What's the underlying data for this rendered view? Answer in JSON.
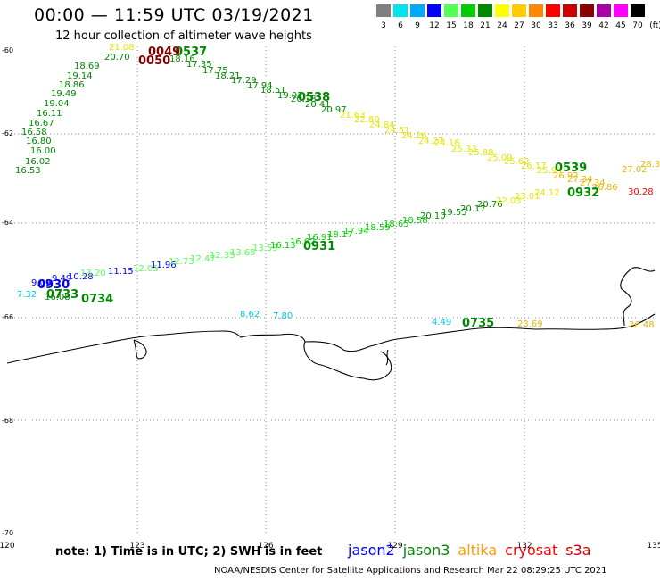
{
  "header": {
    "title": "00:00 — 11:59 UTC 03/19/2021",
    "subtitle": "12 hour collection of altimeter wave heights"
  },
  "colorbar": {
    "unit": "(ft)",
    "levels": [
      {
        "label": "3",
        "color": "#808080"
      },
      {
        "label": "6",
        "color": "#00e5ee"
      },
      {
        "label": "9",
        "color": "#00a8ff"
      },
      {
        "label": "12",
        "color": "#0000ff"
      },
      {
        "label": "15",
        "color": "#55ff55"
      },
      {
        "label": "18",
        "color": "#00cc00"
      },
      {
        "label": "21",
        "color": "#008800"
      },
      {
        "label": "24",
        "color": "#ffff00"
      },
      {
        "label": "27",
        "color": "#ffcc00"
      },
      {
        "label": "30",
        "color": "#ff8800"
      },
      {
        "label": "33",
        "color": "#ff0000"
      },
      {
        "label": "36",
        "color": "#cc0000"
      },
      {
        "label": "39",
        "color": "#880000"
      },
      {
        "label": "42",
        "color": "#aa00aa"
      },
      {
        "label": "45",
        "color": "#ff00ff"
      },
      {
        "label": "70",
        "color": "#000000"
      }
    ]
  },
  "map": {
    "lon_ticks": [
      "120",
      "123",
      "126",
      "129",
      "132",
      "135"
    ],
    "lat_ticks": [
      "-60",
      "-62",
      "-64",
      "-66",
      "-68",
      "-70"
    ]
  },
  "tracks": [
    {
      "name": "track-0530",
      "color": "#008800",
      "points": [
        {
          "v": "16.53",
          "c": "#008800"
        },
        {
          "v": "16.02",
          "c": "#008800"
        },
        {
          "v": "16.00",
          "c": "#008800"
        },
        {
          "v": "16.80",
          "c": "#008800"
        },
        {
          "v": "16.58",
          "c": "#008800"
        },
        {
          "v": "16.67",
          "c": "#008800"
        },
        {
          "v": "16.11",
          "c": "#008800"
        },
        {
          "v": "19.04",
          "c": "#008800"
        },
        {
          "v": "19.49",
          "c": "#008800"
        },
        {
          "v": "18.86",
          "c": "#008800"
        },
        {
          "v": "19.14",
          "c": "#008800"
        },
        {
          "v": "18.69",
          "c": "#008800"
        },
        {
          "v": "20.70",
          "c": "#008800"
        },
        {
          "v": "21.08",
          "c": "#e6e600"
        },
        {
          "v": "18.16",
          "c": "#008800"
        },
        {
          "v": "17.35",
          "c": "#008800"
        },
        {
          "v": "17.75",
          "c": "#008800"
        },
        {
          "v": "18.21",
          "c": "#008800"
        },
        {
          "v": "17.29",
          "c": "#008800"
        },
        {
          "v": "17.94",
          "c": "#008800"
        },
        {
          "v": "18.51",
          "c": "#008800"
        },
        {
          "v": "19.02",
          "c": "#008800"
        },
        {
          "v": "20.38",
          "c": "#008800"
        },
        {
          "v": "20.41",
          "c": "#008800"
        },
        {
          "v": "20.97",
          "c": "#008800"
        },
        {
          "v": "21.63",
          "c": "#e6e600"
        },
        {
          "v": "22.80",
          "c": "#e6e600"
        },
        {
          "v": "24.84",
          "c": "#e6e600"
        },
        {
          "v": "24.51",
          "c": "#e6e600"
        },
        {
          "v": "24.26",
          "c": "#e6e600"
        },
        {
          "v": "24.27",
          "c": "#e6e600"
        },
        {
          "v": "24.16",
          "c": "#e6e600"
        },
        {
          "v": "25.33",
          "c": "#e6e600"
        },
        {
          "v": "25.88",
          "c": "#e6e600"
        },
        {
          "v": "25.09",
          "c": "#e6e600"
        },
        {
          "v": "25.62",
          "c": "#e6e600"
        },
        {
          "v": "26.17",
          "c": "#e6e600"
        },
        {
          "v": "25.94",
          "c": "#e6e600"
        },
        {
          "v": "26.92",
          "c": "#e6b800"
        },
        {
          "v": "27.34",
          "c": "#e6b800"
        },
        {
          "v": "27.34",
          "c": "#e6b800"
        },
        {
          "v": "26.86",
          "c": "#e6b800"
        },
        {
          "v": "27.02",
          "c": "#e6b800"
        },
        {
          "v": "28.3",
          "c": "#e6b800"
        },
        {
          "v": "30.28",
          "c": "#ff0000"
        }
      ]
    },
    {
      "name": "track-0930",
      "color": "#008800",
      "points": [
        {
          "v": "7.32",
          "c": "#00c8e0"
        },
        {
          "v": "16.08",
          "c": "#008800"
        },
        {
          "v": "9.09",
          "c": "#0000ff"
        },
        {
          "v": "9.49",
          "c": "#0000ff"
        },
        {
          "v": "10.28",
          "c": "#0000ff"
        },
        {
          "v": "13.20",
          "c": "#55ff55"
        },
        {
          "v": "11.15",
          "c": "#0000ff"
        },
        {
          "v": "12.05",
          "c": "#55ff55"
        },
        {
          "v": "11.96",
          "c": "#0000ff"
        },
        {
          "v": "12.73",
          "c": "#55ff55"
        },
        {
          "v": "12.47",
          "c": "#55ff55"
        },
        {
          "v": "12.35",
          "c": "#55ff55"
        },
        {
          "v": "13.65",
          "c": "#55ff55"
        },
        {
          "v": "13.59",
          "c": "#55ff55"
        },
        {
          "v": "16.13",
          "c": "#00cc00"
        },
        {
          "v": "16.62",
          "c": "#00cc00"
        },
        {
          "v": "16.91",
          "c": "#00cc00"
        },
        {
          "v": "18.17",
          "c": "#00cc00"
        },
        {
          "v": "17.94",
          "c": "#00cc00"
        },
        {
          "v": "18.59",
          "c": "#00cc00"
        },
        {
          "v": "18.65",
          "c": "#00cc00"
        },
        {
          "v": "18.58",
          "c": "#00cc00"
        },
        {
          "v": "20.10",
          "c": "#008800"
        },
        {
          "v": "19.55",
          "c": "#008800"
        },
        {
          "v": "20.17",
          "c": "#008800"
        },
        {
          "v": "20.76",
          "c": "#008800"
        },
        {
          "v": "22.03",
          "c": "#e6e600"
        },
        {
          "v": "23.01",
          "c": "#e6e600"
        },
        {
          "v": "24.12",
          "c": "#e6e600"
        }
      ]
    },
    {
      "name": "track-0735",
      "color": "#008800",
      "points": [
        {
          "v": "8.62",
          "c": "#00c8e0"
        },
        {
          "v": "7.80",
          "c": "#00c8e0"
        },
        {
          "v": "4.49",
          "c": "#00c8e0"
        },
        {
          "v": "23.69",
          "c": "#e6b800"
        },
        {
          "v": "26.48",
          "c": "#e6b800"
        }
      ]
    }
  ],
  "time_labels": [
    {
      "text": "0537",
      "color": "#008800"
    },
    {
      "text": "0049",
      "color": "#880000"
    },
    {
      "text": "0050",
      "color": "#880000"
    },
    {
      "text": "0538",
      "color": "#008800"
    },
    {
      "text": "0539",
      "color": "#008800"
    },
    {
      "text": "0932",
      "color": "#008800"
    },
    {
      "text": "0931",
      "color": "#008800"
    },
    {
      "text": "0930",
      "color": "#0000ff"
    },
    {
      "text": "0733",
      "color": "#008800"
    },
    {
      "text": "0734",
      "color": "#008800"
    },
    {
      "text": "0735",
      "color": "#008800"
    }
  ],
  "footer": {
    "note": "note: 1) Time is in UTC; 2) SWH is in feet",
    "credit": "NOAA/NESDIS Center for Satellite Applications and Research    Mar 22 08:29:25 UTC 2021",
    "satellites": [
      {
        "name": "jason2",
        "color": "#0000ff"
      },
      {
        "name": "jason3",
        "color": "#008800"
      },
      {
        "name": "altika",
        "color": "#ff9900"
      },
      {
        "name": "cryosat",
        "color": "#ff0000"
      },
      {
        "name": "s3a",
        "color": "#cc0000"
      }
    ]
  }
}
